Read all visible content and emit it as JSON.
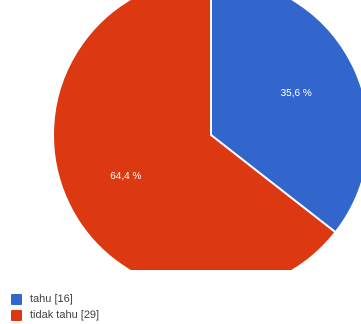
{
  "chart_data": {
    "type": "pie",
    "categories": [
      "tahu",
      "tidak tahu"
    ],
    "values": [
      16,
      29
    ],
    "percent_labels": [
      "35,6 %",
      "64,4 %"
    ],
    "legend_labels": [
      "tahu  [16]",
      "tidak tahu  [29]"
    ],
    "colors": [
      "#3366cc",
      "#dc3912"
    ],
    "start": "12 o'clock",
    "direction": "clockwise",
    "legend_placement": "bottom-left"
  }
}
